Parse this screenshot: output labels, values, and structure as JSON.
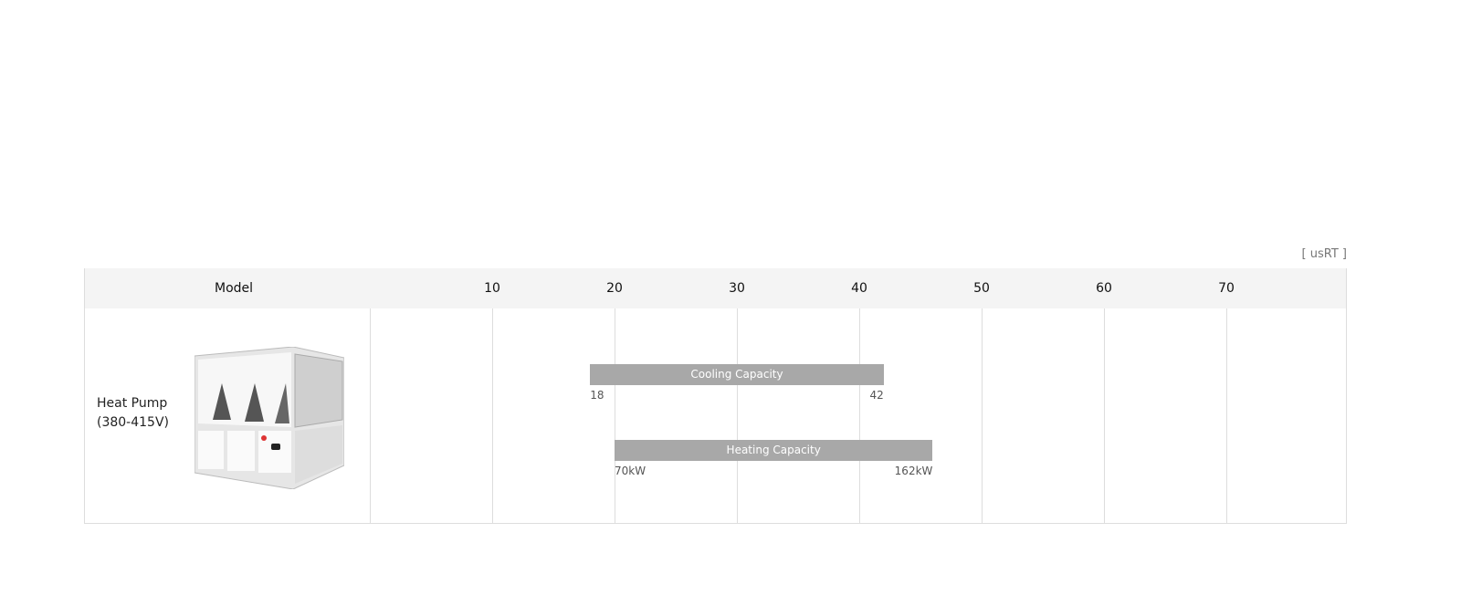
{
  "unit_label": "[ usRT ]",
  "chart_data": {
    "type": "bar",
    "orientation": "horizontal-range",
    "header_label": "Model",
    "ticks": [
      10,
      20,
      30,
      40,
      50,
      60,
      70
    ],
    "xlim": [
      0,
      80
    ],
    "grid": true,
    "rows": [
      {
        "model": "Heat Pump",
        "voltage": "(380-415V)"
      }
    ],
    "series": [
      {
        "name": "Cooling Capacity",
        "start": 18,
        "end": 42,
        "start_label": "18",
        "end_label": "42"
      },
      {
        "name": "Heating Capacity",
        "start": 20,
        "end": 46,
        "start_label": "70kW",
        "end_label": "162kW"
      }
    ],
    "bar_color": "#a8a8a8"
  }
}
